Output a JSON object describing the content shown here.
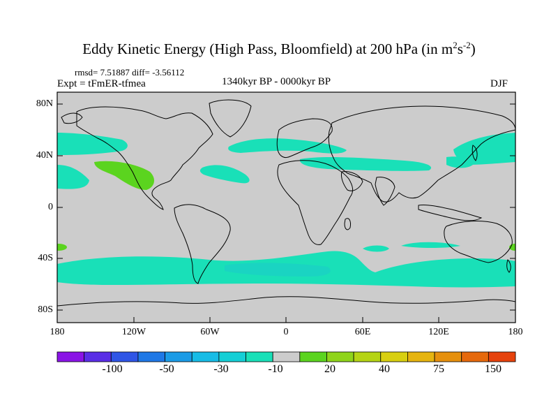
{
  "title": {
    "main": "Eddy Kinetic Energy (High Pass, Bloomfield) at 200 hPa (in m",
    "sup1": "2",
    "mid": "s",
    "sup2": "-2",
    "close": ")"
  },
  "stats": "rmsd= 7.51887 diff= -3.56112",
  "experiment": "Expt = tFmER-tfmea",
  "period": "1340kyr BP - 0000kyr BP",
  "season": "DJF",
  "lat_labels": [
    "80N",
    "40N",
    "0",
    "40S",
    "80S"
  ],
  "lon_labels": [
    "180",
    "120W",
    "60W",
    "0",
    "60E",
    "120E",
    "180"
  ],
  "colorbar": {
    "colors": [
      "#8a14e6",
      "#5a2ee6",
      "#2f55e6",
      "#1f78e6",
      "#1b9be6",
      "#17bce6",
      "#14cfd6",
      "#19e0b8",
      "#cccccc",
      "#5bd41f",
      "#8fd41a",
      "#b5d414",
      "#d8cf10",
      "#e6b40f",
      "#e6900d",
      "#e6690c",
      "#e6420c"
    ],
    "labels": [
      "-100",
      "-50",
      "-30",
      "-10",
      "20",
      "40",
      "75",
      "150"
    ]
  },
  "legend_colors": {
    "neutral": "#cccccc",
    "negative": "#19e0b8",
    "positive": "#5bd41f"
  }
}
